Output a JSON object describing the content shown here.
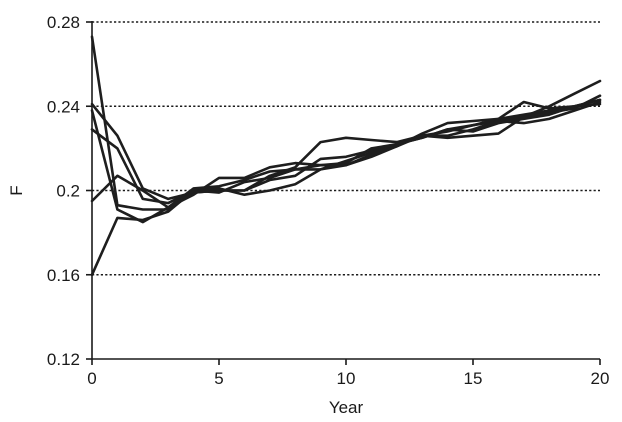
{
  "chart_data": {
    "type": "line",
    "title": "",
    "xlabel": "Year",
    "ylabel": "F",
    "xlim": [
      0,
      20
    ],
    "ylim": [
      0.12,
      0.28
    ],
    "x_ticks": [
      0,
      5,
      10,
      15,
      20
    ],
    "x_tick_labels": [
      "0",
      "5",
      "10",
      "15",
      "20"
    ],
    "y_ticks": [
      0.12,
      0.16,
      0.2,
      0.24,
      0.28
    ],
    "y_tick_labels": [
      "0.12",
      "0.16",
      "0.2",
      "0.24",
      "0.28"
    ],
    "gridlines": "horizontal dotted at y ticks above 0.12",
    "legend": "none",
    "line_color": "#1e1e1e",
    "x": [
      0,
      1,
      2,
      3,
      4,
      5,
      6,
      7,
      8,
      9,
      10,
      11,
      12,
      13,
      14,
      15,
      16,
      17,
      18,
      19,
      20
    ],
    "series": [
      {
        "values": [
          0.273,
          0.193,
          0.191,
          0.191,
          0.199,
          0.2,
          0.2,
          0.207,
          0.211,
          0.223,
          0.225,
          0.224,
          0.223,
          0.226,
          0.225,
          0.226,
          0.227,
          0.235,
          0.24,
          0.246,
          0.252
        ]
      },
      {
        "values": [
          0.241,
          0.226,
          0.201,
          0.196,
          0.199,
          0.2,
          0.2,
          0.205,
          0.207,
          0.215,
          0.216,
          0.219,
          0.222,
          0.225,
          0.229,
          0.231,
          0.233,
          0.235,
          0.237,
          0.239,
          0.245
        ]
      },
      {
        "values": [
          0.229,
          0.22,
          0.196,
          0.194,
          0.2,
          0.201,
          0.198,
          0.2,
          0.203,
          0.21,
          0.214,
          0.218,
          0.222,
          0.226,
          0.228,
          0.231,
          0.234,
          0.236,
          0.238,
          0.24,
          0.241
        ]
      },
      {
        "values": [
          0.195,
          0.207,
          0.2,
          0.192,
          0.201,
          0.202,
          0.205,
          0.209,
          0.21,
          0.21,
          0.212,
          0.217,
          0.221,
          0.227,
          0.232,
          0.233,
          0.234,
          0.242,
          0.239,
          0.24,
          0.243
        ]
      },
      {
        "values": [
          0.16,
          0.187,
          0.186,
          0.19,
          0.2,
          0.199,
          0.204,
          0.206,
          0.21,
          0.212,
          0.212,
          0.216,
          0.221,
          0.226,
          0.226,
          0.229,
          0.233,
          0.232,
          0.234,
          0.238,
          0.242
        ]
      },
      {
        "values": [
          0.238,
          0.191,
          0.185,
          0.192,
          0.198,
          0.206,
          0.206,
          0.211,
          0.213,
          0.212,
          0.213,
          0.22,
          0.222,
          0.225,
          0.229,
          0.228,
          0.232,
          0.234,
          0.236,
          0.24,
          0.243
        ]
      }
    ]
  }
}
